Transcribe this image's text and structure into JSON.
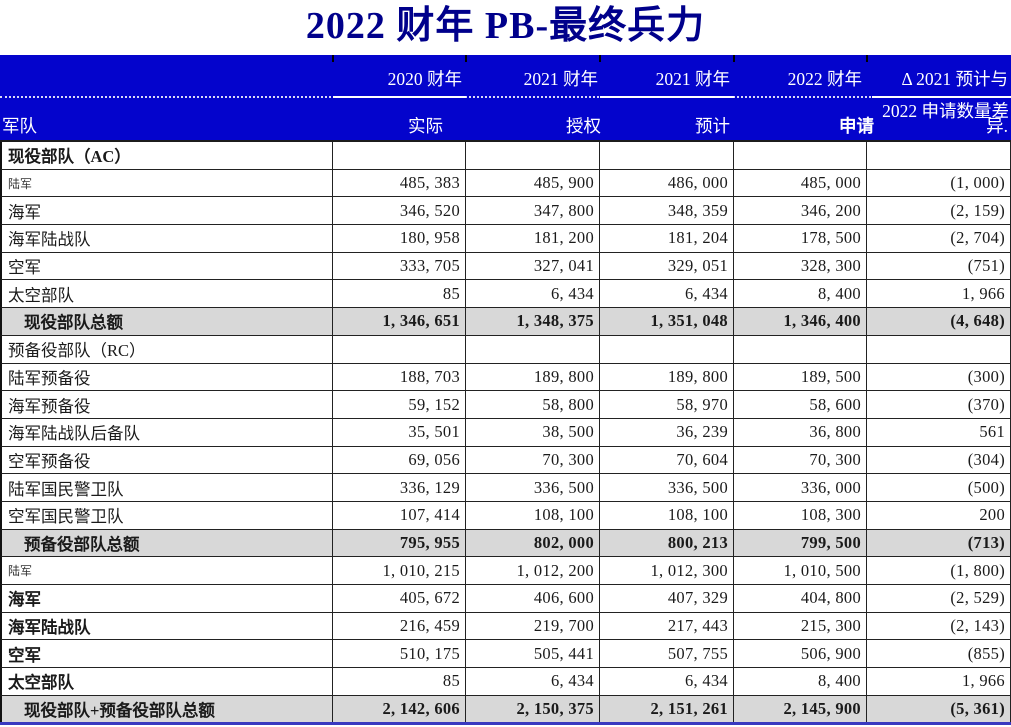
{
  "title": "2022 财年 PB-最终兵力",
  "colors": {
    "banner_blue": "#0404CC",
    "title_navy": "#00008B",
    "total_row_gray": "#D8D8D8",
    "grid_line": "#222222",
    "bottom_line_blue": "#3939C0"
  },
  "header": {
    "row_label": "军队",
    "year_labels": [
      "2020 财年",
      "2021 财年",
      "2021 财年",
      "2022 财年"
    ],
    "delta_label_line1": "Δ 2021 预计与",
    "delta_label_line2": "2022 申请数量差",
    "delta_label_line3": "异.",
    "col_labels": [
      "实际",
      "授权",
      "预计",
      "申请"
    ]
  },
  "rows": [
    {
      "label": "现役部队（AC）",
      "style": "section-bold",
      "values": [
        "",
        "",
        "",
        "",
        ""
      ]
    },
    {
      "label": "陆军",
      "style": "item-small",
      "values": [
        "485, 383",
        "485, 900",
        "486, 000",
        "485, 000",
        "(1, 000)"
      ]
    },
    {
      "label": "海军",
      "style": "item",
      "values": [
        "346, 520",
        "347, 800",
        "348, 359",
        "346, 200",
        "(2, 159)"
      ]
    },
    {
      "label": "海军陆战队",
      "style": "item",
      "values": [
        "180, 958",
        "181, 200",
        "181, 204",
        "178, 500",
        "(2, 704)"
      ]
    },
    {
      "label": "空军",
      "style": "item",
      "values": [
        "333, 705",
        "327, 041",
        "329, 051",
        "328, 300",
        "(751)"
      ]
    },
    {
      "label": "太空部队",
      "style": "item",
      "values": [
        "85",
        "6, 434",
        "6, 434",
        "8, 400",
        "1, 966"
      ]
    },
    {
      "label": "现役部队总额",
      "style": "total",
      "values": [
        "1, 346, 651",
        "1, 348, 375",
        "1, 351, 048",
        "1, 346, 400",
        "(4, 648)"
      ]
    },
    {
      "label": "预备役部队（RC）",
      "style": "section",
      "values": [
        "",
        "",
        "",
        "",
        ""
      ]
    },
    {
      "label": "陆军预备役",
      "style": "item",
      "values": [
        "188, 703",
        "189, 800",
        "189, 800",
        "189, 500",
        "(300)"
      ]
    },
    {
      "label": "海军预备役",
      "style": "item",
      "values": [
        "59, 152",
        "58, 800",
        "58, 970",
        "58, 600",
        "(370)"
      ]
    },
    {
      "label": "海军陆战队后备队",
      "style": "item",
      "values": [
        "35, 501",
        "38, 500",
        "36, 239",
        "36, 800",
        "561"
      ]
    },
    {
      "label": "空军预备役",
      "style": "item",
      "values": [
        "69, 056",
        "70, 300",
        "70, 604",
        "70, 300",
        "(304)"
      ]
    },
    {
      "label": "陆军国民警卫队",
      "style": "item",
      "values": [
        "336, 129",
        "336, 500",
        "336, 500",
        "336, 000",
        "(500)"
      ]
    },
    {
      "label": "空军国民警卫队",
      "style": "item",
      "values": [
        "107, 414",
        "108, 100",
        "108, 100",
        "108, 300",
        "200"
      ]
    },
    {
      "label": "预备役部队总额",
      "style": "total",
      "values": [
        "795, 955",
        "802, 000",
        "800, 213",
        "799, 500",
        "(713)"
      ]
    },
    {
      "label": "陆军",
      "style": "item-small",
      "values": [
        "1, 010, 215",
        "1, 012, 200",
        "1, 012, 300",
        "1, 010, 500",
        "(1, 800)"
      ]
    },
    {
      "label": "海军",
      "style": "item-bold",
      "values": [
        "405, 672",
        "406, 600",
        "407, 329",
        "404, 800",
        "(2, 529)"
      ]
    },
    {
      "label": "海军陆战队",
      "style": "item-bold",
      "values": [
        "216, 459",
        "219, 700",
        "217, 443",
        "215, 300",
        "(2, 143)"
      ]
    },
    {
      "label": "空军",
      "style": "item-bold",
      "values": [
        "510, 175",
        "505, 441",
        "507, 755",
        "506, 900",
        "(855)"
      ]
    },
    {
      "label": "太空部队",
      "style": "item-bold",
      "values": [
        "85",
        "6, 434",
        "6, 434",
        "8, 400",
        "1, 966"
      ]
    },
    {
      "label": "现役部队+预备役部队总额",
      "style": "total",
      "values": [
        "2, 142, 606",
        "2, 150, 375",
        "2, 151, 261",
        "2, 145, 900",
        "(5, 361)"
      ]
    }
  ]
}
